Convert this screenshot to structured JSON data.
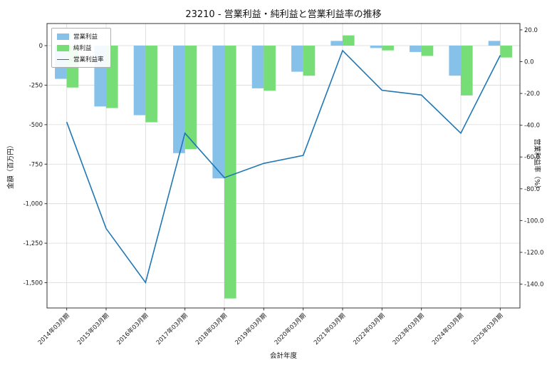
{
  "chart_data": {
    "type": "bar",
    "title": "23210 - 営業利益・純利益と営業利益率の推移",
    "xlabel": "会計年度",
    "ylabel_left": "金額（百万円）",
    "ylabel_right": "営業利益率（%）",
    "categories": [
      "2014年03月期",
      "2015年03月期",
      "2016年03月期",
      "2017年03月期",
      "2018年03月期",
      "2019年03月期",
      "2020年03月期",
      "2021年03月期",
      "2022年03月期",
      "2023年03月期",
      "2024年03月期",
      "2025年03月期"
    ],
    "series": [
      {
        "name": "営業利益",
        "type": "bar",
        "axis": "left",
        "color": "#85C1E9",
        "values": [
          -210,
          -385,
          -440,
          -680,
          -840,
          -270,
          -165,
          30,
          -15,
          -40,
          -190,
          30
        ]
      },
      {
        "name": "純利益",
        "type": "bar",
        "axis": "left",
        "color": "#77DD77",
        "values": [
          -265,
          -395,
          -485,
          -655,
          -1600,
          -285,
          -190,
          65,
          -30,
          -65,
          -315,
          -75
        ]
      },
      {
        "name": "営業利益率",
        "type": "line",
        "axis": "right",
        "color": "#1f77b4",
        "values": [
          -38,
          -105,
          -139,
          -45,
          -73,
          -64,
          -59,
          7,
          -18,
          -21,
          -45,
          4
        ]
      }
    ],
    "left_axis": {
      "ticks": [
        0,
        -250,
        -500,
        -750,
        -1000,
        -1250,
        -1500
      ],
      "tick_labels": [
        "0",
        "-250",
        "-500",
        "-750",
        "-1,000",
        "-1,250",
        "-1,500"
      ],
      "range": [
        -1660,
        140
      ]
    },
    "right_axis": {
      "ticks": [
        20,
        0,
        -20,
        -40,
        -60,
        -80,
        -100,
        -120,
        -140
      ],
      "tick_labels": [
        "20.0",
        "0.0",
        "-20.0",
        "-40.0",
        "-60.0",
        "-80.0",
        "-100.0",
        "-120.0",
        "-140.0"
      ],
      "range": [
        -155,
        24
      ]
    },
    "grid": true,
    "legend_position": "upper-left"
  }
}
